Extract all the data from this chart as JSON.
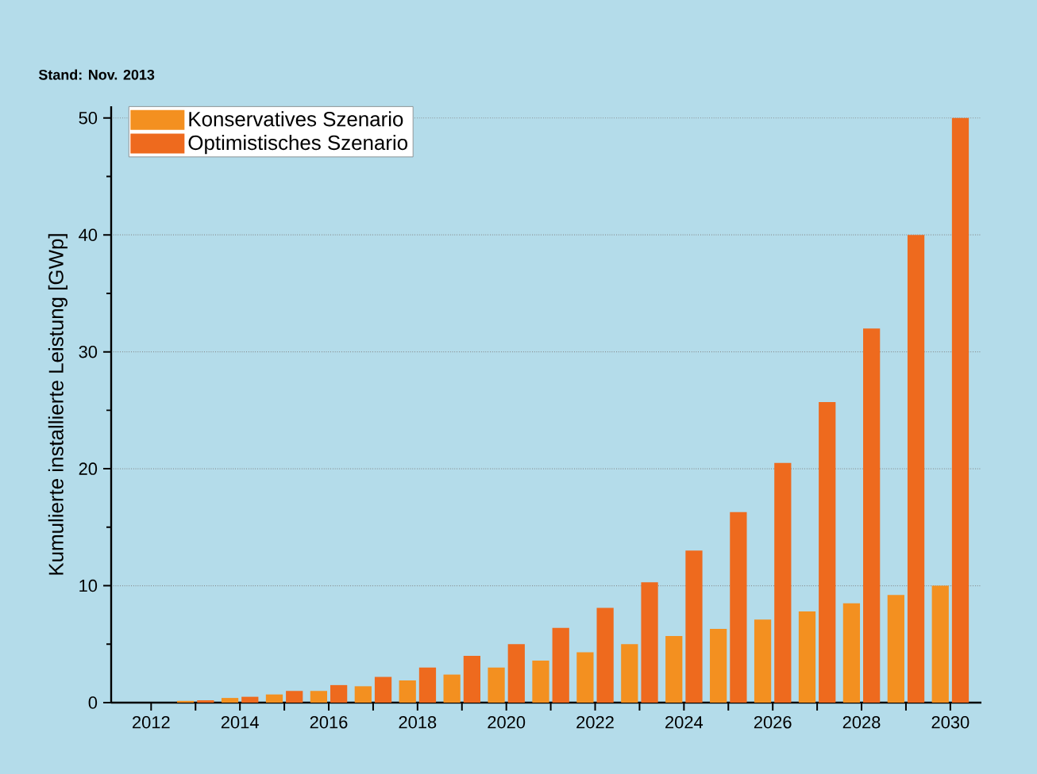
{
  "chart_data": {
    "type": "bar",
    "ylabel": "Kumulierte installierte Leistung [GWp]",
    "annotations": [
      "Stand: Nov. 2013"
    ],
    "categories": [
      "2012",
      null,
      "2014",
      null,
      "2016",
      null,
      "2018",
      null,
      "2020",
      null,
      "2022",
      null,
      "2024",
      null,
      "2026",
      null,
      "2028",
      null,
      "2030"
    ],
    "series": [
      {
        "name": "Konservatives Szenario",
        "color": "#f39020",
        "values": [
          0,
          0.15,
          0.4,
          0.7,
          1.0,
          1.4,
          1.9,
          2.4,
          3.0,
          3.6,
          4.3,
          5.0,
          5.7,
          6.3,
          7.1,
          7.8,
          8.5,
          9.2,
          10.0
        ]
      },
      {
        "name": "Optimistisches Szenario",
        "color": "#ee6a1e",
        "values": [
          0,
          0.2,
          0.5,
          1.0,
          1.5,
          2.2,
          3.0,
          4.0,
          5.0,
          6.4,
          8.1,
          10.3,
          13.0,
          16.3,
          20.5,
          25.7,
          32.0,
          40.0,
          50.0
        ]
      }
    ],
    "ylim": [
      0,
      51
    ],
    "yticks": [
      0,
      10,
      20,
      30,
      40,
      50
    ],
    "grid": "y",
    "legend": "top left"
  }
}
